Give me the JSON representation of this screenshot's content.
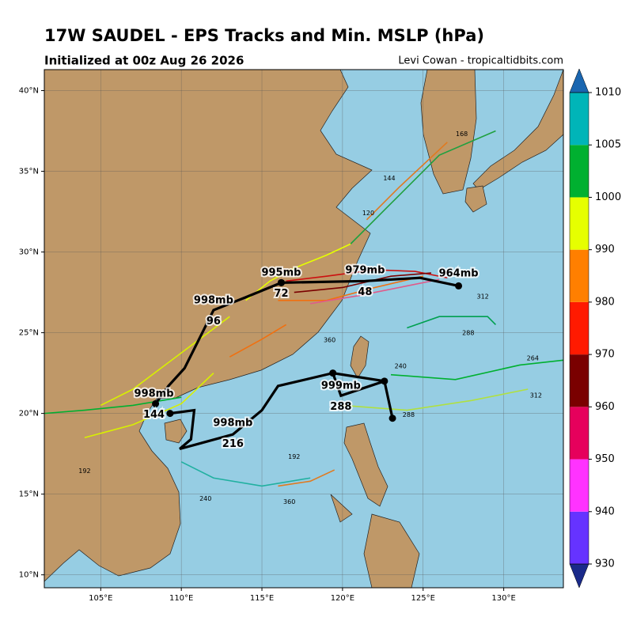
{
  "header": {
    "title": "17W SAUDEL - EPS Tracks and Min. MSLP (hPa)",
    "subtitle": "Initialized at 00z Aug 26 2026",
    "credit": "Levi Cowan - tropicaltidbits.com"
  },
  "map": {
    "lonlim": [
      101.5,
      133.7
    ],
    "latlim": [
      9.2,
      41.3
    ],
    "lonticks": [
      {
        "value": 105,
        "label": "105°E"
      },
      {
        "value": 110,
        "label": "110°E"
      },
      {
        "value": 115,
        "label": "115°E"
      },
      {
        "value": 120,
        "label": "120°E"
      },
      {
        "value": 125,
        "label": "125°E"
      },
      {
        "value": 130,
        "label": "130°E"
      }
    ],
    "latticks": [
      {
        "value": 10,
        "label": "10°N"
      },
      {
        "value": 15,
        "label": "15°N"
      },
      {
        "value": 20,
        "label": "20°N"
      },
      {
        "value": 25,
        "label": "25°N"
      },
      {
        "value": 30,
        "label": "30°N"
      },
      {
        "value": 35,
        "label": "35°N"
      },
      {
        "value": 40,
        "label": "40°N"
      }
    ],
    "grid": true
  },
  "tracks": [
    {
      "color": "#cc1010",
      "lon": [
        116.5,
        119,
        122,
        124.5,
        126.5
      ],
      "lat": [
        28.2,
        28.5,
        28.9,
        28.8,
        28.4
      ]
    },
    {
      "color": "#7a0000",
      "lon": [
        117,
        120,
        123,
        125.5
      ],
      "lat": [
        27.5,
        27.8,
        28.5,
        28.7
      ]
    },
    {
      "color": "#f07010",
      "lon": [
        116,
        119,
        122,
        125
      ],
      "lat": [
        27,
        27,
        27.8,
        28.5
      ]
    },
    {
      "color": "#e05a8a",
      "lon": [
        118,
        121,
        124,
        126
      ],
      "lat": [
        26.8,
        27.3,
        27.9,
        28.3
      ]
    },
    {
      "color": "#20a040",
      "lon": [
        120.5,
        123,
        126,
        129.5
      ],
      "lat": [
        30.5,
        33,
        36,
        37.5
      ]
    },
    {
      "color": "#e07a20",
      "lon": [
        121.5,
        123.5,
        126.5
      ],
      "lat": [
        32.0,
        34.0,
        36.8
      ]
    },
    {
      "color": "#d8f000",
      "lon": [
        113,
        111,
        109,
        107,
        105
      ],
      "lat": [
        26,
        24.5,
        23,
        21.5,
        20.5
      ]
    },
    {
      "color": "#e6ff00",
      "lon": [
        114,
        115.5,
        117,
        119,
        120.5
      ],
      "lat": [
        27,
        28.2,
        29,
        29.8,
        30.5
      ]
    },
    {
      "color": "#00b030",
      "lon": [
        110,
        107,
        104,
        101.5
      ],
      "lat": [
        21,
        20.5,
        20.2,
        20
      ]
    },
    {
      "color": "#20b0a0",
      "lon": [
        110,
        112,
        115,
        118
      ],
      "lat": [
        17,
        16,
        15.5,
        16
      ]
    },
    {
      "color": "#b0e040",
      "lon": [
        120,
        124,
        128,
        131.5
      ],
      "lat": [
        20.5,
        20.2,
        20.8,
        21.5
      ]
    },
    {
      "color": "#00b030",
      "lon": [
        123,
        127,
        131,
        133.7
      ],
      "lat": [
        22.4,
        22.1,
        23,
        23.3
      ]
    },
    {
      "color": "#00a050",
      "lon": [
        124,
        126,
        129,
        129.5
      ],
      "lat": [
        25.3,
        26,
        26,
        25.5
      ]
    },
    {
      "color": "#e07a20",
      "lon": [
        116,
        118,
        119.5
      ],
      "lat": [
        15.5,
        15.8,
        16.5
      ]
    },
    {
      "color": "#f07010",
      "lon": [
        113,
        115,
        116.5
      ],
      "lat": [
        23.5,
        24.6,
        25.5
      ]
    },
    {
      "color": "#d8f000",
      "lon": [
        112,
        110,
        107,
        104
      ],
      "lat": [
        22.5,
        20.6,
        19.3,
        18.5
      ]
    }
  ],
  "mean_tracks": [
    {
      "lon": [
        116.2,
        121.4,
        124.8,
        127.2
      ],
      "lat": [
        28.1,
        28.2,
        28.4,
        27.9
      ]
    },
    {
      "lon": [
        116.2,
        114,
        112.0,
        111.2,
        110.2,
        109.2,
        108.4
      ],
      "lat": [
        28.1,
        27.2,
        26.4,
        24.8,
        22.8,
        21.7,
        20.6
      ]
    },
    {
      "lon": [
        109.3,
        110.8,
        110.6,
        109.9,
        113.2,
        115.0,
        116.0,
        119.4,
        122.6,
        123.1
      ],
      "lat": [
        20.0,
        20.2,
        18.4,
        17.8,
        18.7,
        20.2,
        21.7,
        22.5,
        22.0,
        19.7
      ]
    },
    {
      "lon": [
        119.4,
        119.9,
        122.6
      ],
      "lat": [
        22.5,
        21.1,
        22.0
      ]
    }
  ],
  "mean_labels": [
    {
      "text": "964mb",
      "lon": 127.2,
      "lat": 28.66
    },
    {
      "text": "979mb",
      "lon": 121.4,
      "lat": 28.86
    },
    {
      "text": "48",
      "lon": 121.4,
      "lat": 27.5
    },
    {
      "text": "995mb",
      "lon": 116.2,
      "lat": 28.7
    },
    {
      "text": "72",
      "lon": 116.2,
      "lat": 27.4
    },
    {
      "text": "998mb",
      "lon": 112.0,
      "lat": 27.0
    },
    {
      "text": "96",
      "lon": 112.0,
      "lat": 25.7
    },
    {
      "text": "998mb",
      "lon": 108.3,
      "lat": 21.2
    },
    {
      "text": "144",
      "lon": 108.3,
      "lat": 19.9
    },
    {
      "text": "998mb",
      "lon": 113.2,
      "lat": 19.4
    },
    {
      "text": "216",
      "lon": 113.2,
      "lat": 18.1
    },
    {
      "text": "999mb",
      "lon": 119.9,
      "lat": 21.7
    },
    {
      "text": "288",
      "lon": 119.9,
      "lat": 20.4
    }
  ],
  "hour_labels": [
    {
      "text": "168",
      "lon": 127.4,
      "lat": 37.31
    },
    {
      "text": "144",
      "lon": 122.9,
      "lat": 34.56
    },
    {
      "text": "120",
      "lon": 121.6,
      "lat": 32.4
    },
    {
      "text": "312",
      "lon": 128.7,
      "lat": 27.24
    },
    {
      "text": "288",
      "lon": 127.8,
      "lat": 24.98
    },
    {
      "text": "264",
      "lon": 131.8,
      "lat": 23.41
    },
    {
      "text": "312",
      "lon": 132.0,
      "lat": 21.1
    },
    {
      "text": "360",
      "lon": 119.2,
      "lat": 24.54
    },
    {
      "text": "240",
      "lon": 123.6,
      "lat": 22.92
    },
    {
      "text": "192",
      "lon": 117.0,
      "lat": 17.32
    },
    {
      "text": "360",
      "lon": 116.7,
      "lat": 14.52
    },
    {
      "text": "240",
      "lon": 111.5,
      "lat": 14.72
    },
    {
      "text": "192",
      "lon": 104.0,
      "lat": 16.43
    },
    {
      "text": "288",
      "lon": 124.1,
      "lat": 19.92
    }
  ],
  "colorbar": {
    "ticks": [
      930,
      940,
      950,
      960,
      970,
      980,
      990,
      1000,
      1005,
      1010
    ],
    "colors": [
      "#6633ff",
      "#ff33ff",
      "#e6005c",
      "#7a0000",
      "#ff1a00",
      "#ff7f00",
      "#e6ff00",
      "#00b030",
      "#00b5b8"
    ],
    "under": "#1a2a8a",
    "over": "#1a66b0"
  }
}
